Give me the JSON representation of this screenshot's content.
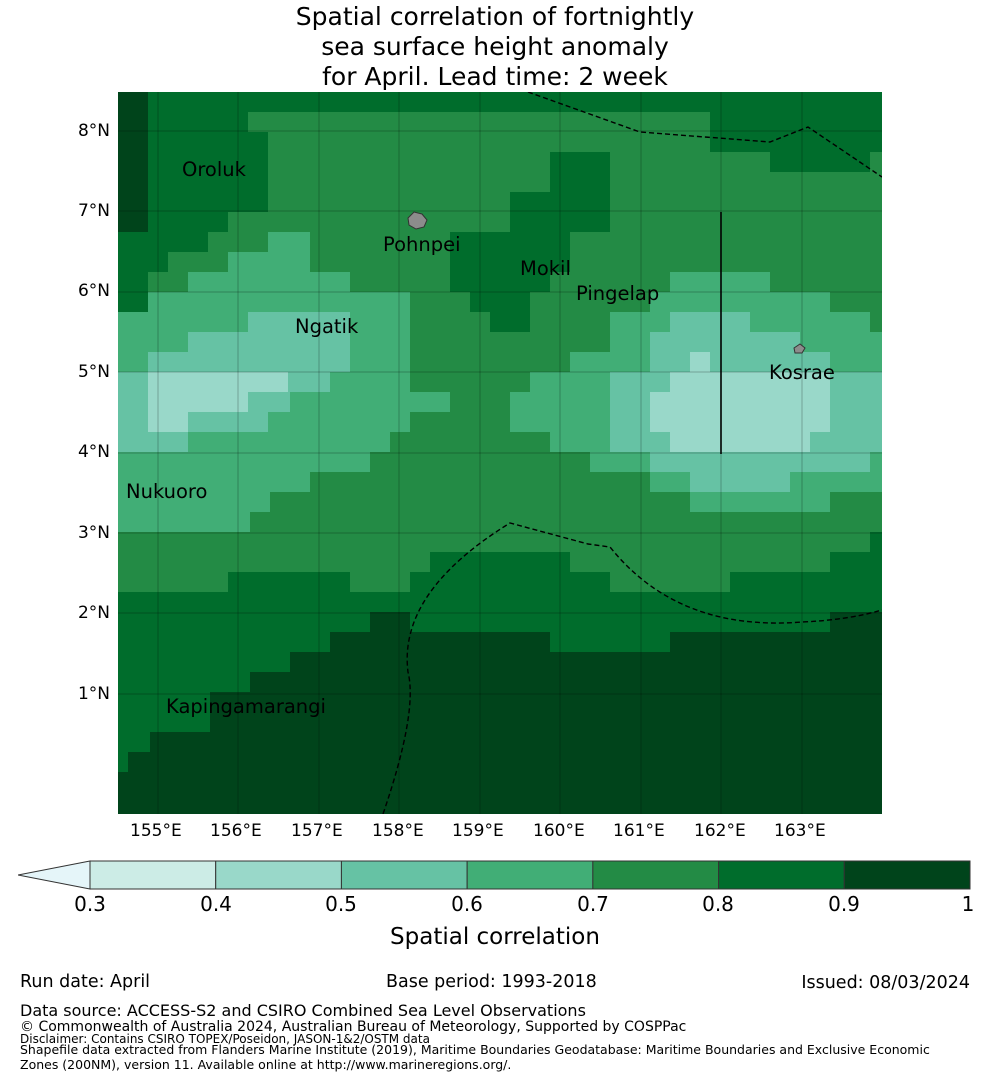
{
  "title": {
    "line1": "Spatial correlation of fortnightly",
    "line2": "sea surface height anomaly",
    "line3": "for April. Lead time: 2 week"
  },
  "axes": {
    "lat_labels": [
      "8°N",
      "7°N",
      "6°N",
      "5°N",
      "4°N",
      "3°N",
      "2°N",
      "1°N"
    ],
    "lon_labels": [
      "155°E",
      "156°E",
      "157°E",
      "158°E",
      "159°E",
      "160°E",
      "161°E",
      "162°E",
      "163°E"
    ]
  },
  "map_extent": {
    "lon_min": 154.5,
    "lon_max": 164.0,
    "lat_min": -0.25,
    "lat_max": 8.5
  },
  "places": [
    {
      "name": "Oroluk",
      "lon": 155.3,
      "lat": 7.55
    },
    {
      "name": "Pohnpei",
      "lon": 157.8,
      "lat": 6.65
    },
    {
      "name": "Mokil",
      "lon": 159.5,
      "lat": 6.35
    },
    {
      "name": "Pingelap",
      "lon": 160.2,
      "lat": 6.05
    },
    {
      "name": "Ngatik",
      "lon": 156.7,
      "lat": 5.65
    },
    {
      "name": "Kosrae",
      "lon": 162.6,
      "lat": 5.1
    },
    {
      "name": "Nukuoro",
      "lon": 154.6,
      "lat": 3.65
    },
    {
      "name": "Kapingamarangi",
      "lon": 155.1,
      "lat": 1.05
    }
  ],
  "colorbar": {
    "title": "Spatial correlation",
    "ticks": [
      "0.3",
      "0.4",
      "0.5",
      "0.6",
      "0.7",
      "0.8",
      "0.9",
      "1"
    ],
    "extend_color": "#e5f5f9",
    "colors": [
      "#ccece6",
      "#99d8c9",
      "#66c2a4",
      "#41ae76",
      "#238b45",
      "#006d2c",
      "#00441b"
    ]
  },
  "footer": {
    "run_date": "Run date: April",
    "base_period": "Base period: 1993-2018",
    "issued": "Issued: 08/03/2024",
    "data_source": "Data source: ACCESS-S2 and CSIRO Combined Sea Level Observations",
    "copyright": "© Commonwealth of Australia 2024, Australian Bureau of Meteorology, Supported by COSPPac",
    "disclaimer": "Disclaimer: Contains CSIRO TOPEX/Poseidon, JASON-1&2/OSTM data",
    "shapefile": "Shapefile data extracted from Flanders Marine Institute (2019), Maritime Boundaries Geodatabase: Maritime Boundaries and Exclusive Economic Zones (200NM), version 11. Available online at http://www.marineregions.org/."
  }
}
